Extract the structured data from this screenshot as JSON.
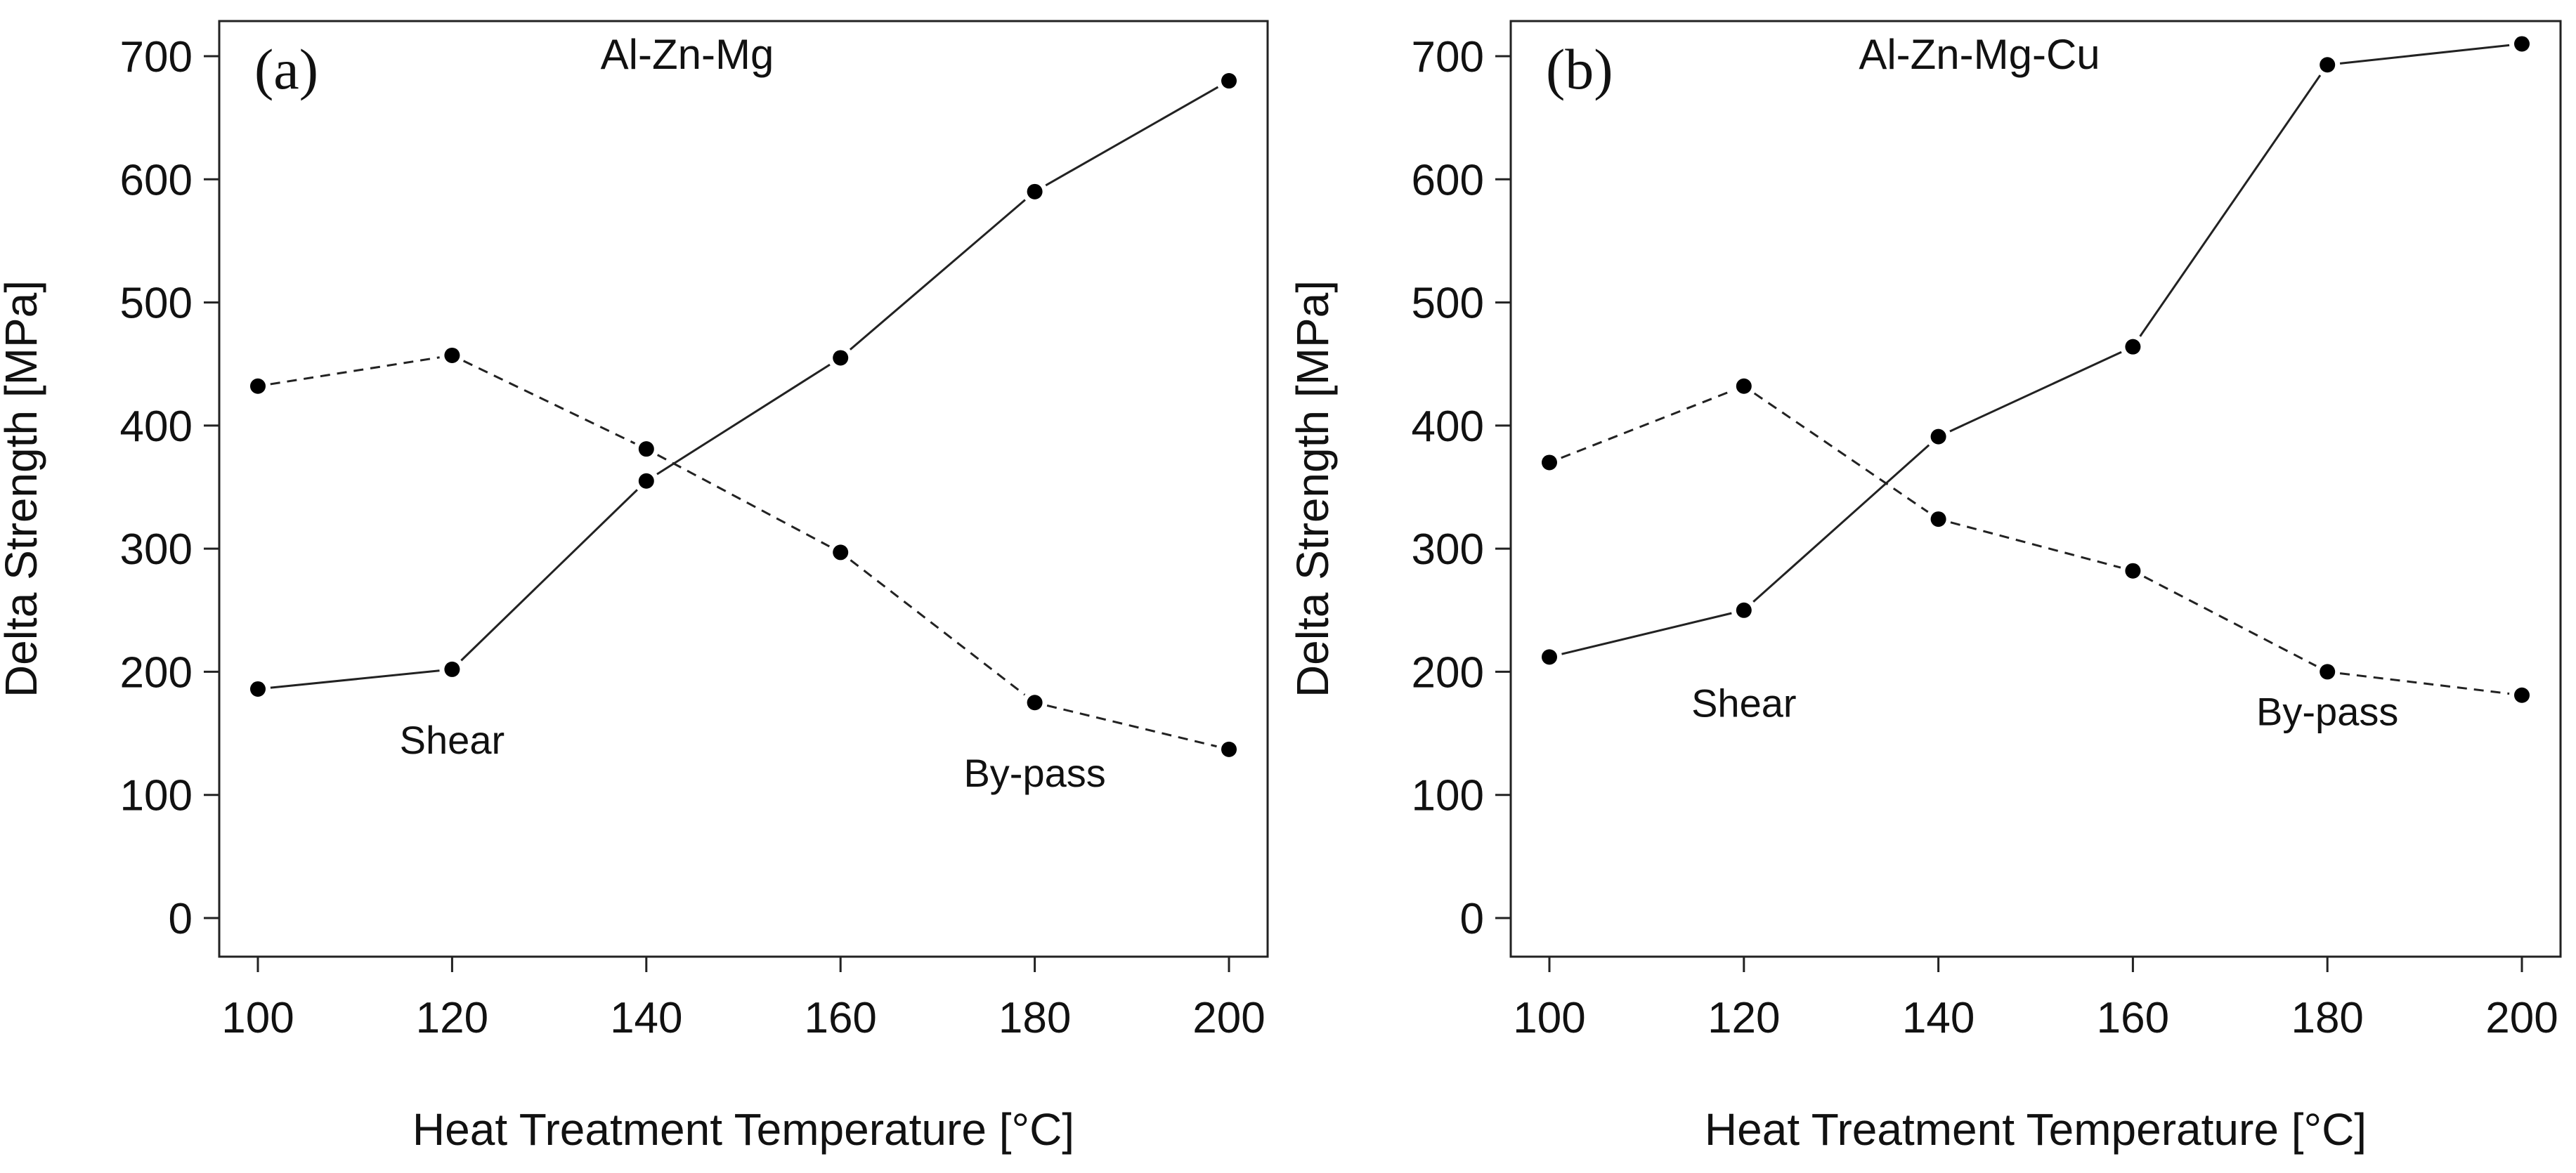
{
  "chart_data": [
    {
      "type": "line",
      "panel_label": "(a)",
      "title": "Al-Zn-Mg",
      "xlabel": "Heat Treatment Temperature [°C]",
      "ylabel": "Delta Strength [MPa]",
      "x": [
        100,
        120,
        140,
        160,
        180,
        200
      ],
      "xlim": [
        100,
        200
      ],
      "ylim": [
        0,
        700
      ],
      "xticks": [
        100,
        120,
        140,
        160,
        180,
        200
      ],
      "yticks": [
        0,
        100,
        200,
        300,
        400,
        500,
        600,
        700
      ],
      "series": [
        {
          "name": "Shear",
          "style": "solid",
          "values": [
            186,
            202,
            355,
            455,
            590,
            680
          ]
        },
        {
          "name": "By-pass",
          "style": "dashed",
          "values": [
            432,
            457,
            381,
            297,
            175,
            137
          ]
        }
      ],
      "annotations": [
        {
          "text": "Shear",
          "x": 120,
          "y": 145
        },
        {
          "text": "By-pass",
          "x": 180,
          "y": 118
        }
      ]
    },
    {
      "type": "line",
      "panel_label": "(b)",
      "title": "Al-Zn-Mg-Cu",
      "xlabel": "Heat Treatment Temperature [°C]",
      "ylabel": "Delta Strength [MPa]",
      "x": [
        100,
        120,
        140,
        160,
        180,
        200
      ],
      "xlim": [
        100,
        200
      ],
      "ylim": [
        0,
        700
      ],
      "xticks": [
        100,
        120,
        140,
        160,
        180,
        200
      ],
      "yticks": [
        0,
        100,
        200,
        300,
        400,
        500,
        600,
        700
      ],
      "series": [
        {
          "name": "Shear",
          "style": "solid",
          "values": [
            212,
            250,
            391,
            464,
            693,
            710
          ]
        },
        {
          "name": "By-pass",
          "style": "dashed",
          "values": [
            370,
            432,
            324,
            282,
            200,
            181
          ]
        }
      ],
      "annotations": [
        {
          "text": "Shear",
          "x": 120,
          "y": 175
        },
        {
          "text": "By-pass",
          "x": 180,
          "y": 168
        }
      ]
    }
  ]
}
